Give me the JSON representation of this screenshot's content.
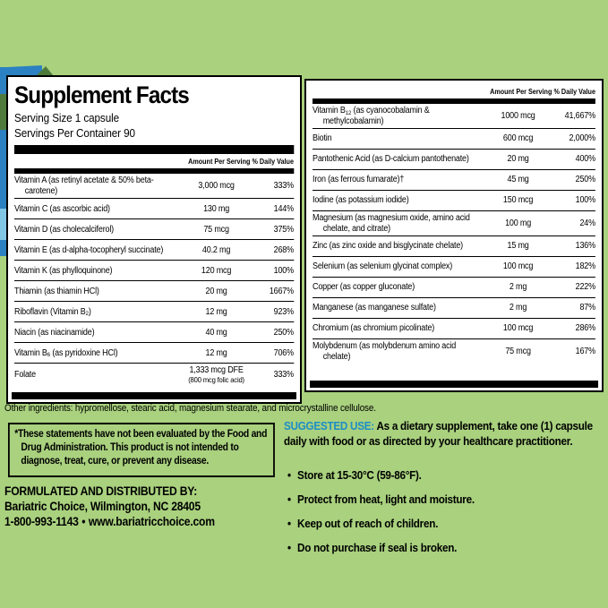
{
  "colors": {
    "page_bg": "#a9d17e",
    "panel_bg": "#ffffff",
    "rule_color": "#000000",
    "suggested_label_color": "#1d8ec6",
    "edge_blue": "#2b81c1",
    "edge_olive": "#4e7b3c",
    "edge_cyan": "#82c6e6"
  },
  "left_panel": {
    "title": "Supplement Facts",
    "serving_size": "Serving Size 1 capsule",
    "servings_per_container": "Servings Per Container 90",
    "col_amount": "Amount Per Serving",
    "col_dv": "% Daily Value",
    "rows": [
      {
        "name": "Vitamin A (as retinyl acetate & 50% beta-carotene)",
        "amount": "3,000 mcg",
        "dv": "333%"
      },
      {
        "name": "Vitamin C (as ascorbic acid)",
        "amount": "130 mg",
        "dv": "144%"
      },
      {
        "name": "Vitamin D (as cholecalciferol)",
        "amount": "75 mcg",
        "dv": "375%"
      },
      {
        "name": "Vitamin E (as d-alpha-tocopheryl succinate)",
        "amount": "40.2 mg",
        "dv": "268%"
      },
      {
        "name": "Vitamin K (as phylloquinone)",
        "amount": "120 mcg",
        "dv": "100%"
      },
      {
        "name": "Thiamin (as thiamin HCl)",
        "amount": "20 mg",
        "dv": "1667%"
      },
      {
        "name": "Riboflavin (Vitamin B~2~)",
        "amount": "12 mg",
        "dv": "923%"
      },
      {
        "name": "Niacin (as niacinamide)",
        "amount": "40 mg",
        "dv": "250%"
      },
      {
        "name": "Vitamin B~6~ (as pyridoxine HCl)",
        "amount": "12 mg",
        "dv": "706%"
      },
      {
        "name": "Folate",
        "amount": "1,333 mcg DFE",
        "amount2": "(800 mcg folic acid)",
        "dv": "333%"
      }
    ]
  },
  "right_panel": {
    "col_amount": "Amount Per Serving",
    "col_dv": "% Daily Value",
    "rows": [
      {
        "name": "Vitamin B~12~ (as cyanocobalamin & methylcobalamin)",
        "amount": "1000 mcg",
        "dv": "41,667%"
      },
      {
        "name": "Biotin",
        "amount": "600 mcg",
        "dv": "2,000%"
      },
      {
        "name": "Pantothenic Acid (as D-calcium pantothenate)",
        "amount": "20 mg",
        "dv": "400%"
      },
      {
        "name": "Iron (as ferrous fumarate)†",
        "amount": "45 mg",
        "dv": "250%"
      },
      {
        "name": "Iodine (as potassium iodide)",
        "amount": "150 mcg",
        "dv": "100%"
      },
      {
        "name": "Magnesium (as magnesium oxide, amino acid chelate, and citrate)",
        "amount": "100 mg",
        "dv": "24%"
      },
      {
        "name": "Zinc (as zinc oxide and bisglycinate chelate)",
        "amount": "15 mg",
        "dv": "136%"
      },
      {
        "name": "Selenium (as selenium glycinat complex)",
        "amount": "100 mcg",
        "dv": "182%"
      },
      {
        "name": "Copper (as copper gluconate)",
        "amount": "2 mg",
        "dv": "222%"
      },
      {
        "name": "Manganese (as manganese sulfate)",
        "amount": "2 mg",
        "dv": "87%"
      },
      {
        "name": "Chromium (as chromium picolinate)",
        "amount": "100 mcg",
        "dv": "286%"
      },
      {
        "name": "Molybdenum (as molybdenum amino acid chelate)",
        "amount": "75 mcg",
        "dv": "167%"
      }
    ]
  },
  "other_ingredients": "Other ingredients: hypromellose, stearic acid, magnesium stearate, and microcrystalline cellulose.",
  "disclaimer": "*These statements have not been evaluated by the Food and Drug Administration. This product is not intended to diagnose, treat, cure, or prevent any disease.",
  "distributor": {
    "heading": "FORMULATED AND DISTRIBUTED BY:",
    "line1": "Bariatric Choice, Wilmington, NC 28405",
    "phone": "1-800-993-1143",
    "separator": "•",
    "website": "www.bariatricchoice.com"
  },
  "suggested_use": {
    "label": "SUGGESTED USE:",
    "text": " As a dietary supplement, take one (1) capsule daily with food or as directed by your healthcare practitioner.",
    "bullets": [
      "Store at 15-30°C (59-86°F).",
      "Protect from heat, light and moisture.",
      "Keep out of reach of children.",
      "Do not purchase if seal is broken."
    ]
  }
}
